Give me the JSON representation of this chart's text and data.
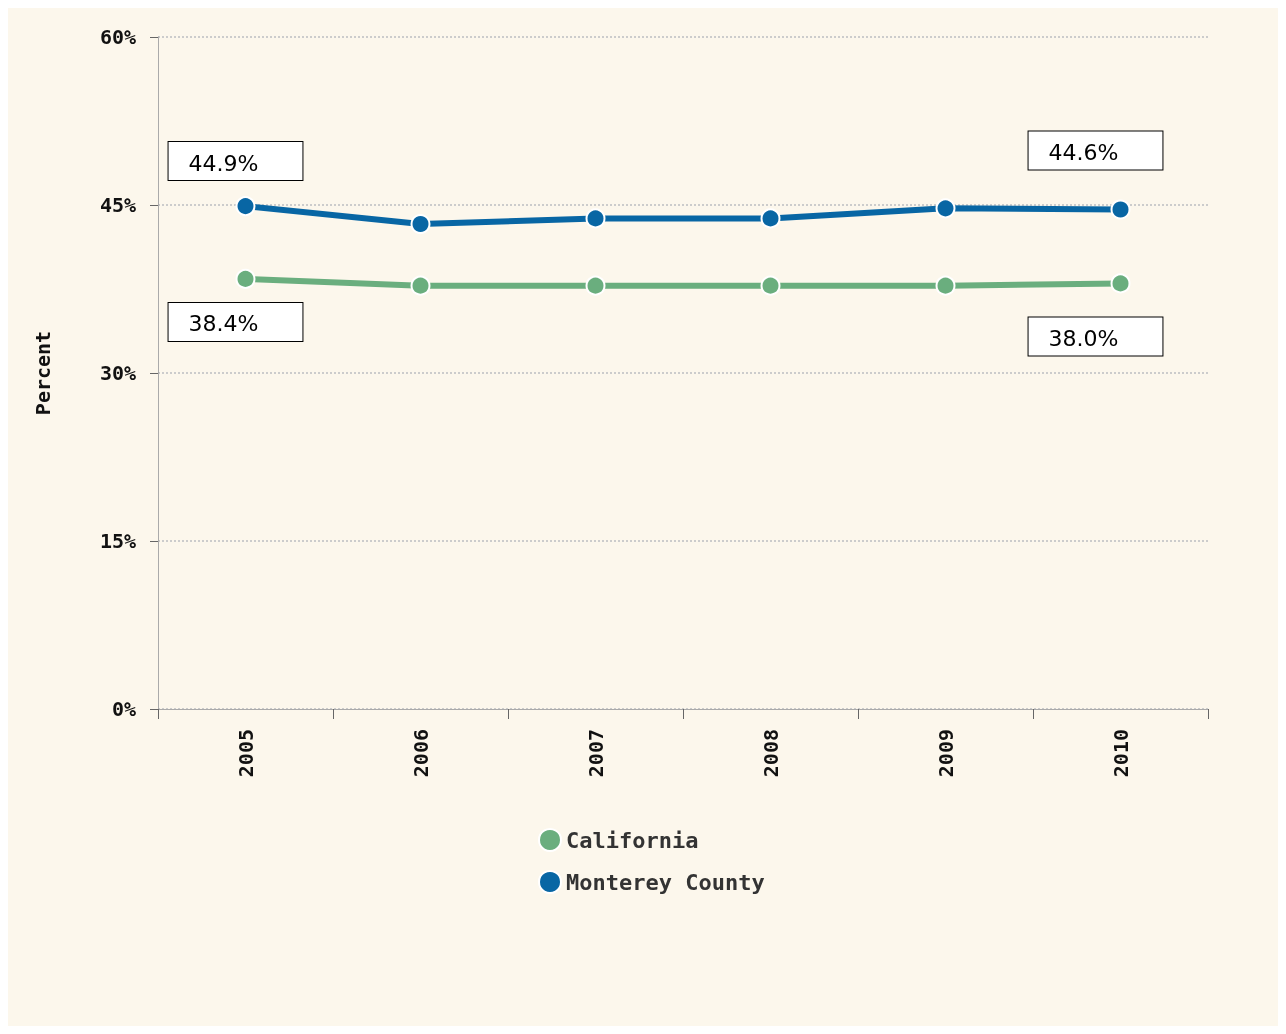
{
  "chart_data": {
    "type": "line",
    "ylabel": "Percent",
    "categories": [
      "2005",
      "2006",
      "2007",
      "2008",
      "2009",
      "2010"
    ],
    "series": [
      {
        "name": "California",
        "color": "#6aae7e",
        "values": [
          38.4,
          37.8,
          37.8,
          37.8,
          37.8,
          38.0
        ],
        "value_labels": [
          "38.4%",
          null,
          null,
          null,
          null,
          "38.0%"
        ]
      },
      {
        "name": "Monterey County",
        "color": "#0866a4",
        "values": [
          44.9,
          43.3,
          43.8,
          43.8,
          44.7,
          44.6
        ],
        "value_labels": [
          "44.9%",
          null,
          null,
          null,
          null,
          "44.6%"
        ]
      }
    ],
    "ylim": [
      0,
      60
    ],
    "yticks": [
      {
        "value": 0,
        "label": "0%"
      },
      {
        "value": 15,
        "label": "15%"
      },
      {
        "value": 30,
        "label": "30%"
      },
      {
        "value": 45,
        "label": "45%"
      },
      {
        "value": 60,
        "label": "60%"
      }
    ],
    "grid": "y",
    "legend": "bottom",
    "marker": "circle",
    "line_style": "solid"
  }
}
